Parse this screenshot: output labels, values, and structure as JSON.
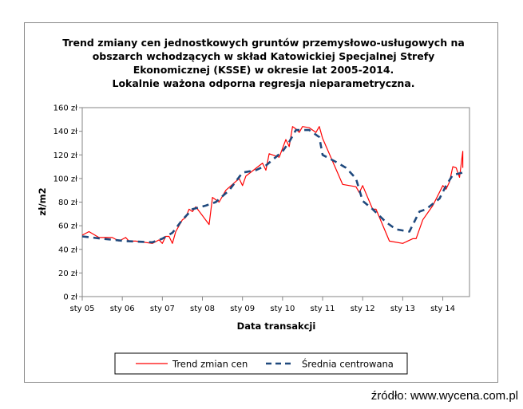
{
  "chart_data": {
    "type": "line",
    "title_lines": [
      "Trend zmiany cen jednostkowych gruntów przemysłowo-usługowych na",
      "obszarch wchodzących w skład Katowickiej Specjalnej Strefy",
      "Ekonomicznej (KSSE) w okresie lat 2005-2014.",
      "Lokalnie ważona odporna regresja nieparametryczna."
    ],
    "xlabel": "Data transakcji",
    "ylabel": "zł/m2",
    "ylim": [
      0,
      160
    ],
    "xlim": [
      "2005-01",
      "2014-09"
    ],
    "y_ticks": [
      "0 zł",
      "20 zł",
      "40 zł",
      "60 zł",
      "80 zł",
      "100 zł",
      "120 zł",
      "140 zł",
      "160 zł"
    ],
    "x_ticks": [
      "sty 05",
      "sty 06",
      "sty 07",
      "sty 08",
      "sty 09",
      "sty 10",
      "sty 11",
      "sty 12",
      "sty 13",
      "sty 14"
    ],
    "grid": false,
    "legend_position": "bottom",
    "series": [
      {
        "name": "Trend zmian cen",
        "color": "#ff0000",
        "style": "solid",
        "points": [
          [
            "2005-01",
            52
          ],
          [
            "2005-03",
            55
          ],
          [
            "2005-06",
            50
          ],
          [
            "2005-10",
            50
          ],
          [
            "2005-12",
            47
          ],
          [
            "2006-02",
            50
          ],
          [
            "2006-03",
            47
          ],
          [
            "2006-05",
            47
          ],
          [
            "2006-10",
            45
          ],
          [
            "2006-12",
            48
          ],
          [
            "2007-01",
            45
          ],
          [
            "2007-02",
            51
          ],
          [
            "2007-03",
            51
          ],
          [
            "2007-04",
            45
          ],
          [
            "2007-05",
            55
          ],
          [
            "2007-07",
            65
          ],
          [
            "2007-08",
            67
          ],
          [
            "2007-09",
            74
          ],
          [
            "2007-10",
            72
          ],
          [
            "2007-11",
            76
          ],
          [
            "2008-03",
            61
          ],
          [
            "2008-04",
            84
          ],
          [
            "2008-06",
            80
          ],
          [
            "2008-08",
            90
          ],
          [
            "2008-12",
            100
          ],
          [
            "2009-01",
            94
          ],
          [
            "2009-02",
            102
          ],
          [
            "2009-07",
            113
          ],
          [
            "2009-08",
            107
          ],
          [
            "2009-09",
            121
          ],
          [
            "2009-12",
            118
          ],
          [
            "2010-02",
            133
          ],
          [
            "2010-03",
            127
          ],
          [
            "2010-04",
            144
          ],
          [
            "2010-05",
            142
          ],
          [
            "2010-06",
            139
          ],
          [
            "2010-07",
            144
          ],
          [
            "2010-09",
            143
          ],
          [
            "2010-10",
            141
          ],
          [
            "2010-11",
            139
          ],
          [
            "2010-12",
            144
          ],
          [
            "2011-01",
            134
          ],
          [
            "2011-07",
            95
          ],
          [
            "2011-11",
            93
          ],
          [
            "2011-12",
            88
          ],
          [
            "2012-01",
            94
          ],
          [
            "2012-04",
            74
          ],
          [
            "2012-05",
            74
          ],
          [
            "2012-09",
            47
          ],
          [
            "2013-01",
            45
          ],
          [
            "2013-04",
            49
          ],
          [
            "2013-05",
            49
          ],
          [
            "2013-07",
            65
          ],
          [
            "2013-10",
            77
          ],
          [
            "2014-01",
            94
          ],
          [
            "2014-02",
            91
          ],
          [
            "2014-03",
            97
          ],
          [
            "2014-04",
            110
          ],
          [
            "2014-05",
            109
          ],
          [
            "2014-06",
            101
          ],
          [
            "2014-07",
            123
          ],
          [
            "2014-07",
            109
          ]
        ]
      },
      {
        "name": "Średnia centrowana",
        "color": "#1f497d",
        "style": "dashed",
        "points": [
          [
            "2005-01",
            51
          ],
          [
            "2005-07",
            49
          ],
          [
            "2006-02",
            47
          ],
          [
            "2006-10",
            46
          ],
          [
            "2007-01",
            49
          ],
          [
            "2007-04",
            54
          ],
          [
            "2007-07",
            65
          ],
          [
            "2007-10",
            74
          ],
          [
            "2008-02",
            77
          ],
          [
            "2008-05",
            80
          ],
          [
            "2008-09",
            90
          ],
          [
            "2009-01",
            105
          ],
          [
            "2009-05",
            107
          ],
          [
            "2009-08",
            111
          ],
          [
            "2010-01",
            123
          ],
          [
            "2010-03",
            131
          ],
          [
            "2010-05",
            141
          ],
          [
            "2010-09",
            141
          ],
          [
            "2010-12",
            135
          ],
          [
            "2011-01",
            120
          ],
          [
            "2011-05",
            114
          ],
          [
            "2011-08",
            109
          ],
          [
            "2011-11",
            100
          ],
          [
            "2012-01",
            81
          ],
          [
            "2012-04",
            74
          ],
          [
            "2012-08",
            63
          ],
          [
            "2012-11",
            57
          ],
          [
            "2013-03",
            55
          ],
          [
            "2013-06",
            72
          ],
          [
            "2013-08",
            74
          ],
          [
            "2013-12",
            83
          ],
          [
            "2014-02",
            94
          ],
          [
            "2014-04",
            103
          ],
          [
            "2014-07",
            105
          ]
        ]
      }
    ]
  },
  "source": "źródło: www.wycena.com.pl"
}
